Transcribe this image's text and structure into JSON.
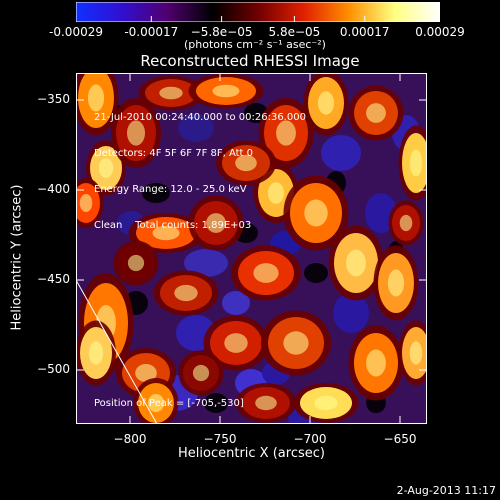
{
  "colorbar": {
    "ticks": [
      "-0.00029",
      "-0.00017",
      "−5.8e−05",
      "5.8e−05",
      "0.00017",
      "0.00029"
    ],
    "tick_values": [
      -0.00029,
      -0.00017,
      -5.8e-05,
      5.8e-05,
      0.00017,
      0.00029
    ],
    "range": [
      -0.00029,
      0.00029
    ],
    "units_text": "(photons cm⁻² s⁻¹ asec⁻²)",
    "colors": [
      "#1030ff",
      "#3010d0",
      "#500070",
      "#000000",
      "#700000",
      "#e02000",
      "#ff9000",
      "#ffff80",
      "#ffffff"
    ]
  },
  "chart_data": {
    "type": "heatmap",
    "title": "Reconstructed RHESSI Image",
    "xlabel": "Heliocentric X (arcsec)",
    "ylabel": "Heliocentric Y (arcsec)",
    "xlim": [
      -830,
      -635
    ],
    "ylim": [
      -530,
      -335
    ],
    "x_ticks": [
      -800,
      -750,
      -700,
      -650
    ],
    "y_ticks": [
      -350,
      -400,
      -450,
      -500
    ],
    "annotations": [
      "21-Jul-2010 00:24:40.000 to 00:26:36.000",
      "Detectors: 4F 5F 6F 7F 8F, Att 0",
      "Energy Range: 12.0 - 25.0 keV",
      "Clean    Total counts: 1.89E+03"
    ],
    "peak_text": "Position of Peak = [-705,-530]",
    "peak": [
      -705,
      -530
    ],
    "limb_line": [
      [
        -830,
        -450
      ],
      [
        -785,
        -530
      ]
    ],
    "grid": false
  },
  "footer": {
    "date": "2-Aug-2013 11:17"
  }
}
